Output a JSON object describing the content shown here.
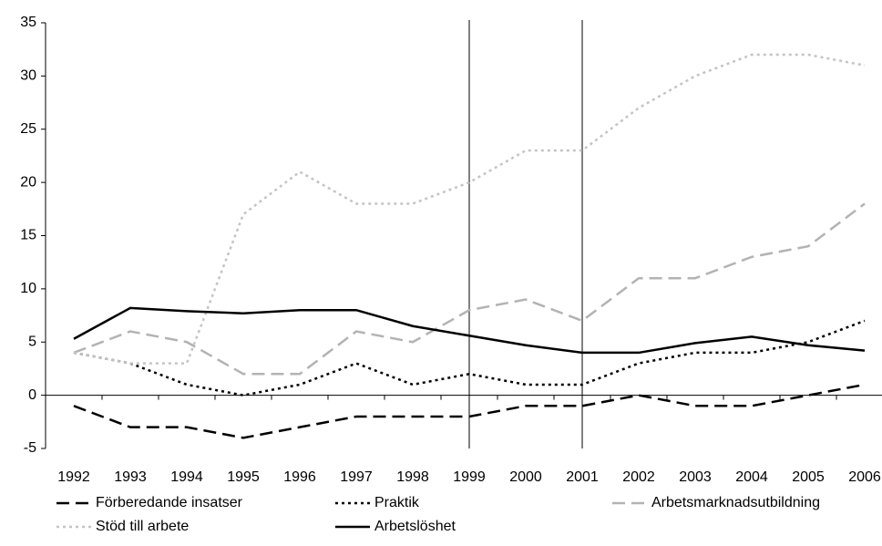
{
  "chart_data": {
    "type": "line",
    "categories": [
      "1992",
      "1993",
      "1994",
      "1995",
      "1996",
      "1997",
      "1998",
      "1999",
      "2000",
      "2001",
      "2002",
      "2003",
      "2004",
      "2005",
      "2006"
    ],
    "series": [
      {
        "name": "Förberedande insatser",
        "color": "#000000",
        "dash": "long-dash",
        "values": [
          -1,
          -3,
          -3,
          -4,
          -3,
          -2,
          -2,
          -2,
          -1,
          -1,
          0,
          -1,
          -1,
          0,
          1
        ]
      },
      {
        "name": "Praktik",
        "color": "#000000",
        "dash": "dotted",
        "values": [
          4,
          3,
          1,
          0,
          1,
          3,
          1,
          2,
          1,
          1,
          3,
          4,
          4,
          5,
          7
        ]
      },
      {
        "name": "Arbetsmarknadsutbildning",
        "color": "#b3b3b3",
        "dash": "long-dash",
        "values": [
          4,
          6,
          5,
          2,
          2,
          6,
          5,
          8,
          9,
          7,
          11,
          11,
          13,
          14,
          18
        ]
      },
      {
        "name": "Stöd till arbete",
        "color": "#c4c4c4",
        "dash": "dotted",
        "values": [
          4,
          3,
          3,
          17,
          21,
          18,
          18,
          20,
          23,
          23,
          27,
          30,
          32,
          32,
          31
        ]
      },
      {
        "name": "Arbetslöshet",
        "color": "#000000",
        "dash": "solid",
        "values": [
          5.3,
          8.2,
          7.9,
          7.7,
          8.0,
          8.0,
          6.5,
          5.6,
          4.7,
          4.0,
          4.0,
          4.9,
          5.5,
          4.7,
          4.2
        ]
      }
    ],
    "ylim": [
      -5,
      35
    ],
    "yticks": [
      -5,
      0,
      5,
      10,
      15,
      20,
      25,
      30,
      35
    ],
    "vertical_markers": [
      "1999",
      "2001"
    ],
    "legend": "bottom"
  }
}
